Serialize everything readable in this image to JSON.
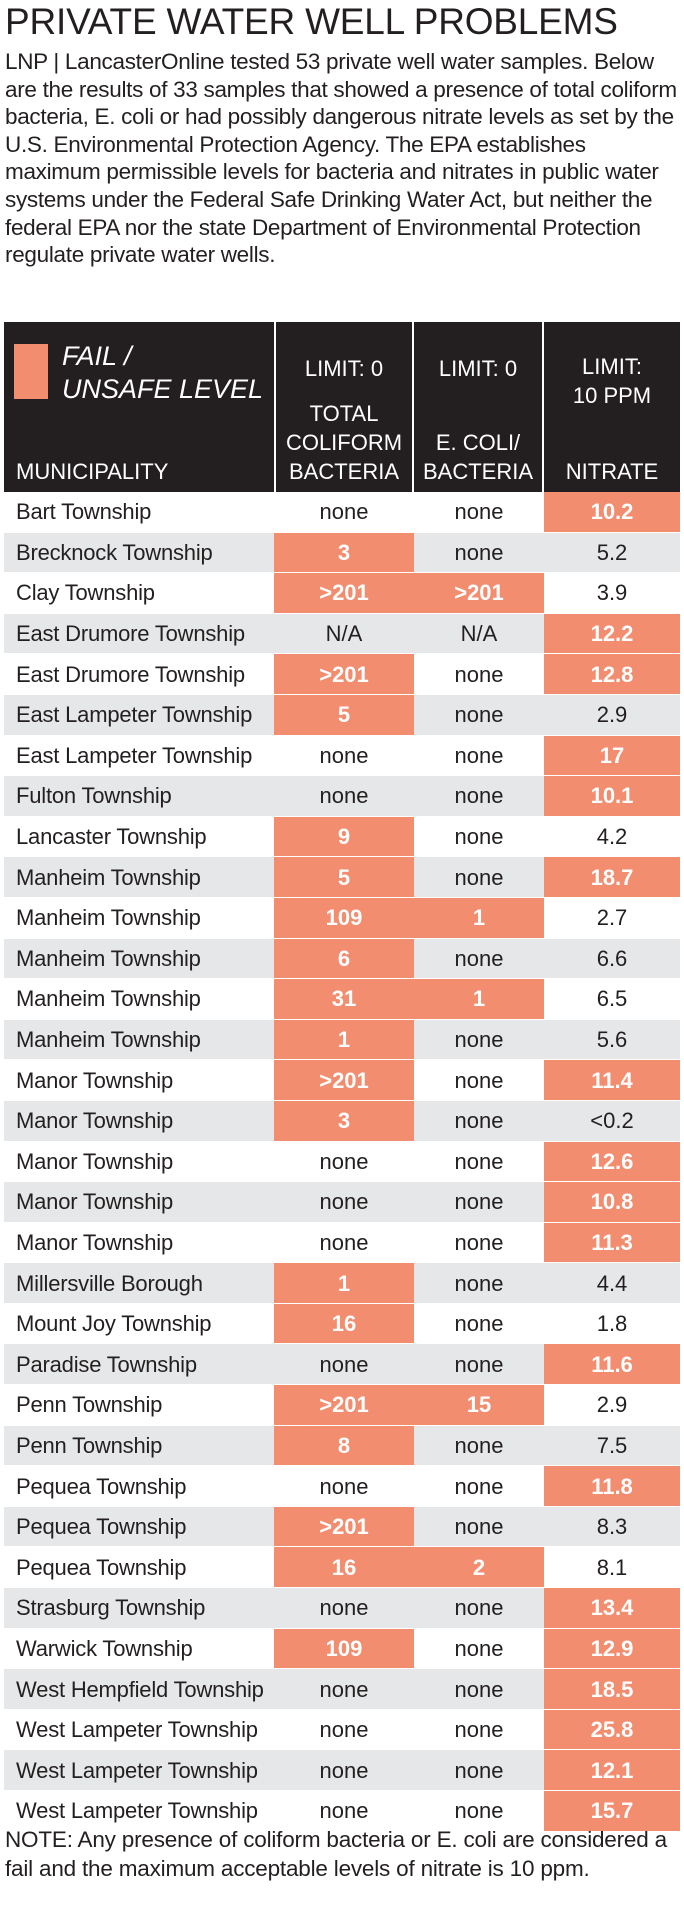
{
  "title": "PRIVATE WATER WELL PROBLEMS",
  "intro": "LNP | LancasterOnline tested 53 private well water samples. Below are the results of 33 samples that showed a presence of total coliform bacteria, E. coli or had possibly dangerous nitrate levels as set by the U.S. Environmental Protection Agency. The EPA establishes maximum permissible levels for bacteria and nitrates in public water systems under the Federal Safe Drinking Water Act, but neither the federal EPA nor the state Department of Environmental Protection regulate private water wells.",
  "legend": {
    "line1": "FAIL /",
    "line2": "UNSAFE LEVEL",
    "color": "#f28d70"
  },
  "header": {
    "municipality": "MUNICIPALITY",
    "coliform_limit": "LIMIT: 0",
    "coliform_label_1": "TOTAL",
    "coliform_label_2": "COLIFORM",
    "coliform_label_3": "BACTERIA",
    "ecoli_limit": "LIMIT: 0",
    "ecoli_label_1": "E. COLI/",
    "ecoli_label_2": "BACTERIA",
    "nitrate_limit_1": "LIMIT:",
    "nitrate_limit_2": "10 PPM",
    "nitrate_label": "NITRATE"
  },
  "rows": [
    {
      "muni": "Bart Township",
      "coliform": "none",
      "ecoli": "none",
      "nitrate": "10.2",
      "fail": [
        false,
        false,
        true
      ]
    },
    {
      "muni": "Brecknock Township",
      "coliform": "3",
      "ecoli": "none",
      "nitrate": "5.2",
      "fail": [
        true,
        false,
        false
      ]
    },
    {
      "muni": "Clay Township",
      "coliform": ">201",
      "ecoli": ">201",
      "nitrate": "3.9",
      "fail": [
        true,
        true,
        false
      ]
    },
    {
      "muni": "East Drumore Township",
      "coliform": "N/A",
      "ecoli": "N/A",
      "nitrate": "12.2",
      "fail": [
        false,
        false,
        true
      ]
    },
    {
      "muni": "East Drumore Township",
      "coliform": ">201",
      "ecoli": "none",
      "nitrate": "12.8",
      "fail": [
        true,
        false,
        true
      ]
    },
    {
      "muni": "East Lampeter Township",
      "coliform": "5",
      "ecoli": "none",
      "nitrate": "2.9",
      "fail": [
        true,
        false,
        false
      ]
    },
    {
      "muni": "East Lampeter Township",
      "coliform": "none",
      "ecoli": "none",
      "nitrate": "17",
      "fail": [
        false,
        false,
        true
      ]
    },
    {
      "muni": "Fulton Township",
      "coliform": "none",
      "ecoli": "none",
      "nitrate": "10.1",
      "fail": [
        false,
        false,
        true
      ]
    },
    {
      "muni": "Lancaster Township",
      "coliform": "9",
      "ecoli": "none",
      "nitrate": "4.2",
      "fail": [
        true,
        false,
        false
      ]
    },
    {
      "muni": "Manheim Township",
      "coliform": "5",
      "ecoli": "none",
      "nitrate": "18.7",
      "fail": [
        true,
        false,
        true
      ]
    },
    {
      "muni": "Manheim Township",
      "coliform": "109",
      "ecoli": "1",
      "nitrate": "2.7",
      "fail": [
        true,
        true,
        false
      ]
    },
    {
      "muni": "Manheim Township",
      "coliform": "6",
      "ecoli": "none",
      "nitrate": "6.6",
      "fail": [
        true,
        false,
        false
      ]
    },
    {
      "muni": "Manheim Township",
      "coliform": "31",
      "ecoli": "1",
      "nitrate": "6.5",
      "fail": [
        true,
        true,
        false
      ]
    },
    {
      "muni": "Manheim Township",
      "coliform": "1",
      "ecoli": "none",
      "nitrate": "5.6",
      "fail": [
        true,
        false,
        false
      ]
    },
    {
      "muni": "Manor Township",
      "coliform": ">201",
      "ecoli": "none",
      "nitrate": "11.4",
      "fail": [
        true,
        false,
        true
      ]
    },
    {
      "muni": "Manor Township",
      "coliform": "3",
      "ecoli": "none",
      "nitrate": "<0.2",
      "fail": [
        true,
        false,
        false
      ]
    },
    {
      "muni": "Manor Township",
      "coliform": "none",
      "ecoli": "none",
      "nitrate": "12.6",
      "fail": [
        false,
        false,
        true
      ]
    },
    {
      "muni": "Manor Township",
      "coliform": "none",
      "ecoli": "none",
      "nitrate": "10.8",
      "fail": [
        false,
        false,
        true
      ]
    },
    {
      "muni": "Manor Township",
      "coliform": "none",
      "ecoli": "none",
      "nitrate": "11.3",
      "fail": [
        false,
        false,
        true
      ]
    },
    {
      "muni": "Millersville Borough",
      "coliform": "1",
      "ecoli": "none",
      "nitrate": "4.4",
      "fail": [
        true,
        false,
        false
      ]
    },
    {
      "muni": "Mount Joy Township",
      "coliform": "16",
      "ecoli": "none",
      "nitrate": "1.8",
      "fail": [
        true,
        false,
        false
      ]
    },
    {
      "muni": "Paradise Township",
      "coliform": "none",
      "ecoli": "none",
      "nitrate": "11.6",
      "fail": [
        false,
        false,
        true
      ]
    },
    {
      "muni": "Penn Township",
      "coliform": ">201",
      "ecoli": "15",
      "nitrate": "2.9",
      "fail": [
        true,
        true,
        false
      ]
    },
    {
      "muni": "Penn Township",
      "coliform": "8",
      "ecoli": "none",
      "nitrate": "7.5",
      "fail": [
        true,
        false,
        false
      ]
    },
    {
      "muni": "Pequea Township",
      "coliform": "none",
      "ecoli": "none",
      "nitrate": "11.8",
      "fail": [
        false,
        false,
        true
      ]
    },
    {
      "muni": "Pequea Township",
      "coliform": ">201",
      "ecoli": "none",
      "nitrate": "8.3",
      "fail": [
        true,
        false,
        false
      ]
    },
    {
      "muni": "Pequea Township",
      "coliform": "16",
      "ecoli": "2",
      "nitrate": "8.1",
      "fail": [
        true,
        true,
        false
      ]
    },
    {
      "muni": "Strasburg Township",
      "coliform": "none",
      "ecoli": "none",
      "nitrate": "13.4",
      "fail": [
        false,
        false,
        true
      ]
    },
    {
      "muni": "Warwick Township",
      "coliform": "109",
      "ecoli": "none",
      "nitrate": "12.9",
      "fail": [
        true,
        false,
        true
      ]
    },
    {
      "muni": "West Hempfield Township",
      "coliform": "none",
      "ecoli": "none",
      "nitrate": "18.5",
      "fail": [
        false,
        false,
        true
      ]
    },
    {
      "muni": "West Lampeter Township",
      "coliform": "none",
      "ecoli": "none",
      "nitrate": "25.8",
      "fail": [
        false,
        false,
        true
      ]
    },
    {
      "muni": "West Lampeter Township",
      "coliform": "none",
      "ecoli": "none",
      "nitrate": "12.1",
      "fail": [
        false,
        false,
        true
      ]
    },
    {
      "muni": "West Lampeter Township",
      "coliform": "none",
      "ecoli": "none",
      "nitrate": "15.7",
      "fail": [
        false,
        false,
        true
      ]
    }
  ],
  "note": "NOTE: Any presence of coliform bacteria or E. coli are considered a fail and the maximum acceptable levels of nitrate is 10 ppm."
}
